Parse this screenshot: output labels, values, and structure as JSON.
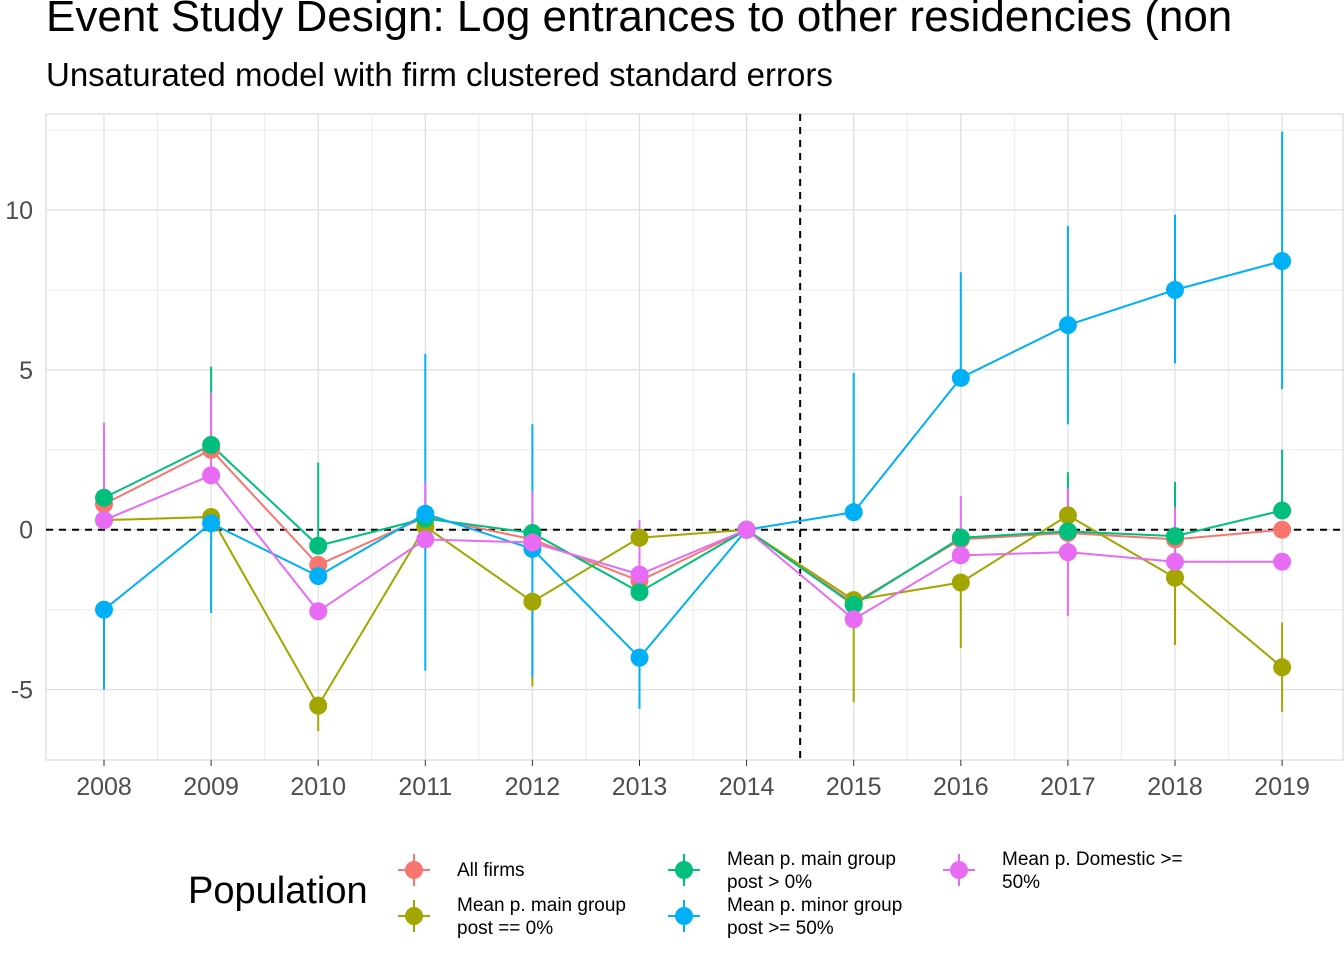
{
  "chart_data": {
    "type": "line",
    "title": "Event Study Design: Log entrances to other residencies (non",
    "subtitle": "Unsaturated model with firm clustered standard errors",
    "x": [
      2008,
      2009,
      2010,
      2011,
      2012,
      2013,
      2014,
      2015,
      2016,
      2017,
      2018,
      2019
    ],
    "ylim": [
      -7.2,
      13.0
    ],
    "yticks": [
      -5,
      0,
      5,
      10
    ],
    "yticklabels": [
      "-5",
      "0",
      "5",
      "10"
    ],
    "grid": true,
    "vline_between": [
      2014,
      2015
    ],
    "hline": 0,
    "legend": {
      "title": "Population",
      "placement": "bottom"
    },
    "series": [
      {
        "name": "All firms",
        "color": "#F8766D",
        "values": [
          0.8,
          2.5,
          -1.1,
          0.4,
          -0.3,
          -1.6,
          0.0,
          -2.3,
          -0.3,
          -0.1,
          -0.3,
          0.0
        ],
        "lower": [
          null,
          null,
          null,
          null,
          null,
          null,
          null,
          null,
          null,
          null,
          null,
          null
        ],
        "upper": [
          null,
          null,
          null,
          null,
          null,
          null,
          null,
          null,
          null,
          null,
          null,
          null
        ]
      },
      {
        "name": "Mean p. main group post == 0%",
        "color": "#A3A500",
        "values": [
          0.3,
          0.4,
          -5.5,
          0.1,
          -2.25,
          -0.25,
          0.0,
          -2.2,
          -1.65,
          0.45,
          -1.5,
          -4.3
        ],
        "lower": [
          null,
          null,
          -6.3,
          null,
          -4.9,
          null,
          null,
          -5.4,
          -3.7,
          null,
          -3.6,
          -5.7
        ],
        "upper": [
          null,
          null,
          null,
          null,
          null,
          null,
          null,
          null,
          null,
          null,
          null,
          -2.9
        ]
      },
      {
        "name": "Mean p. main group post > 0%",
        "color": "#00BF7D",
        "values": [
          1.0,
          2.65,
          -0.5,
          0.35,
          -0.1,
          -1.95,
          0.0,
          -2.35,
          -0.25,
          -0.05,
          -0.2,
          0.6
        ],
        "lower": [
          null,
          null,
          null,
          null,
          null,
          null,
          null,
          null,
          null,
          null,
          null,
          null
        ],
        "upper": [
          null,
          5.1,
          2.1,
          null,
          null,
          null,
          null,
          null,
          null,
          1.8,
          1.5,
          2.5
        ]
      },
      {
        "name": "Mean p. minor group post >= 50%",
        "color": "#00B0F6",
        "values": [
          -2.5,
          0.2,
          -1.45,
          0.5,
          -0.6,
          -4.0,
          0.0,
          0.55,
          4.75,
          6.4,
          7.5,
          8.4
        ],
        "lower": [
          -5.0,
          -2.6,
          null,
          -4.4,
          -4.6,
          -5.6,
          null,
          null,
          null,
          3.3,
          5.2,
          4.4
        ],
        "upper": [
          null,
          null,
          null,
          5.5,
          3.3,
          null,
          null,
          4.9,
          8.05,
          9.5,
          9.85,
          12.45
        ]
      },
      {
        "name": "Mean p. Domestic >= 50%",
        "color": "#E76BF3",
        "values": [
          0.3,
          1.7,
          -2.55,
          -0.3,
          -0.4,
          -1.4,
          0.0,
          -2.8,
          -0.8,
          -0.7,
          -1.0,
          -1.0
        ],
        "lower": [
          null,
          null,
          null,
          null,
          null,
          null,
          null,
          null,
          null,
          -2.7,
          null,
          null
        ],
        "upper": [
          3.35,
          4.3,
          null,
          1.5,
          1.2,
          0.3,
          null,
          null,
          1.05,
          1.3,
          0.7,
          null
        ]
      }
    ]
  }
}
